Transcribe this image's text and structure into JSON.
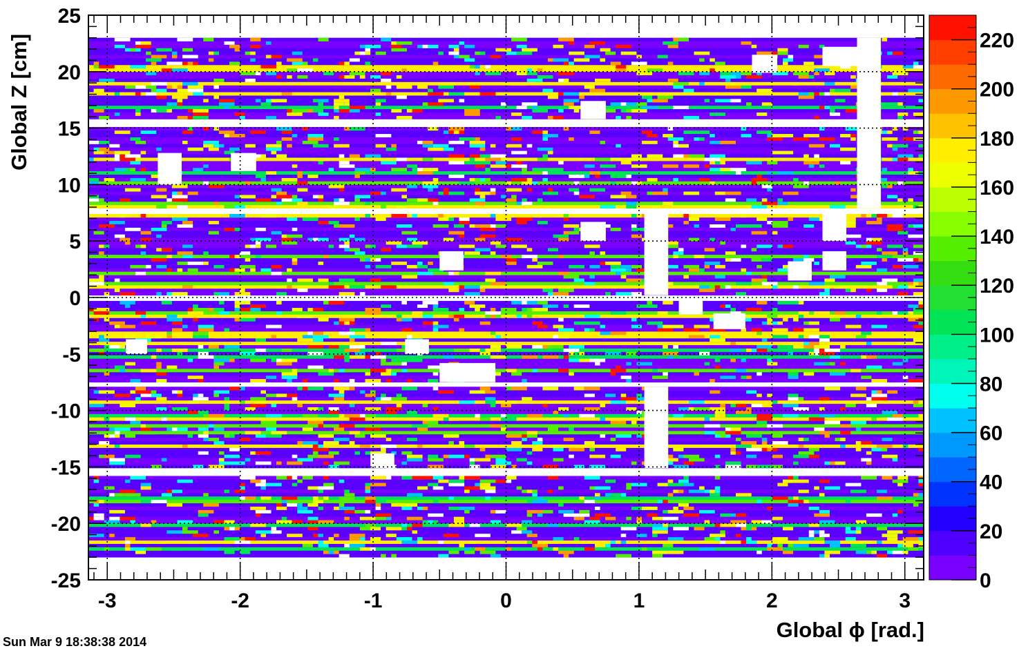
{
  "chart_data": {
    "type": "heatmap",
    "xlabel": "Global ϕ [rad.]",
    "ylabel": "Global Z [cm]",
    "xlim": [
      -3.1416,
      3.1416
    ],
    "ylim": [
      -25,
      25
    ],
    "grid": true,
    "x_ticks": [
      -3,
      -2,
      -1,
      0,
      1,
      2,
      3
    ],
    "x_tick_labels": [
      "-3",
      "-2",
      "-1",
      "0",
      "1",
      "2",
      "3"
    ],
    "y_ticks": [
      -25,
      -20,
      -15,
      -10,
      -5,
      0,
      5,
      10,
      15,
      20,
      25
    ],
    "y_tick_labels": [
      "-25",
      "-20",
      "-15",
      "-10",
      "-5",
      "0",
      "5",
      "10",
      "15",
      "20",
      "25"
    ],
    "colorbar": {
      "min": 0,
      "max": 230,
      "ticks": [
        0,
        20,
        40,
        60,
        80,
        100,
        120,
        140,
        160,
        180,
        200,
        220
      ],
      "tick_labels": [
        "0",
        "20",
        "40",
        "60",
        "80",
        "100",
        "120",
        "140",
        "160",
        "180",
        "200",
        "220"
      ],
      "colors": [
        "#7a00ff",
        "#4f00ff",
        "#2200ff",
        "#0033ff",
        "#0066ff",
        "#0099ff",
        "#00c2ff",
        "#00ffee",
        "#00f5bb",
        "#00ef88",
        "#00e455",
        "#22e033",
        "#33dd11",
        "#55ee00",
        "#88ff00",
        "#bbff00",
        "#eeff00",
        "#ffee00",
        "#ffc200",
        "#ff9900",
        "#ff6a00",
        "#ff3e00",
        "#ff1100"
      ]
    },
    "filled_z_bands": [
      [
        -23,
        -15.8
      ],
      [
        -15.1,
        -7.9
      ],
      [
        -7.5,
        -0.2
      ],
      [
        0.2,
        7.5
      ],
      [
        7.9,
        15.1
      ],
      [
        15.8,
        23
      ]
    ],
    "background_value_range": [
      0,
      20
    ],
    "empty_regions": [
      {
        "phi": [
          -2.62,
          -2.44
        ],
        "z": [
          10,
          12.8
        ]
      },
      {
        "phi": [
          -2.07,
          -1.88
        ],
        "z": [
          11.2,
          12.8
        ]
      },
      {
        "phi": [
          0.56,
          0.75
        ],
        "z": [
          15.8,
          17.4
        ]
      },
      {
        "phi": [
          0.56,
          0.75
        ],
        "z": [
          5,
          6.7
        ]
      },
      {
        "phi": [
          -0.5,
          -0.32
        ],
        "z": [
          2.4,
          4.1
        ]
      },
      {
        "phi": [
          1.85,
          2.04
        ],
        "z": [
          19.9,
          21.5
        ]
      },
      {
        "phi": [
          2.38,
          2.64
        ],
        "z": [
          20.5,
          22.2
        ]
      },
      {
        "phi": [
          2.64,
          2.82
        ],
        "z": [
          7.9,
          23
        ]
      },
      {
        "phi": [
          2.38,
          2.56
        ],
        "z": [
          5,
          7.5
        ]
      },
      {
        "phi": [
          2.38,
          2.56
        ],
        "z": [
          2.4,
          4.1
        ]
      },
      {
        "phi": [
          2.12,
          2.3
        ],
        "z": [
          1.5,
          3.2
        ]
      },
      {
        "phi": [
          1.04,
          1.22
        ],
        "z": [
          0.2,
          7.5
        ]
      },
      {
        "phi": [
          1.04,
          1.22
        ],
        "z": [
          -15.1,
          -7.9
        ]
      },
      {
        "phi": [
          1.3,
          1.48
        ],
        "z": [
          -1.5,
          -0.2
        ]
      },
      {
        "phi": [
          1.56,
          1.8
        ],
        "z": [
          -2.8,
          -1.4
        ]
      },
      {
        "phi": [
          -2.86,
          -2.7
        ],
        "z": [
          -5,
          -3.7
        ]
      },
      {
        "phi": [
          -0.76,
          -0.58
        ],
        "z": [
          -5,
          -3.7
        ]
      },
      {
        "phi": [
          -0.5,
          -0.08
        ],
        "z": [
          -7.5,
          -5.8
        ]
      },
      {
        "phi": [
          -1.02,
          -0.84
        ],
        "z": [
          -15.1,
          -13.8
        ]
      }
    ]
  },
  "footer": {
    "timestamp": "Sun Mar  9 18:38:38 2014"
  }
}
